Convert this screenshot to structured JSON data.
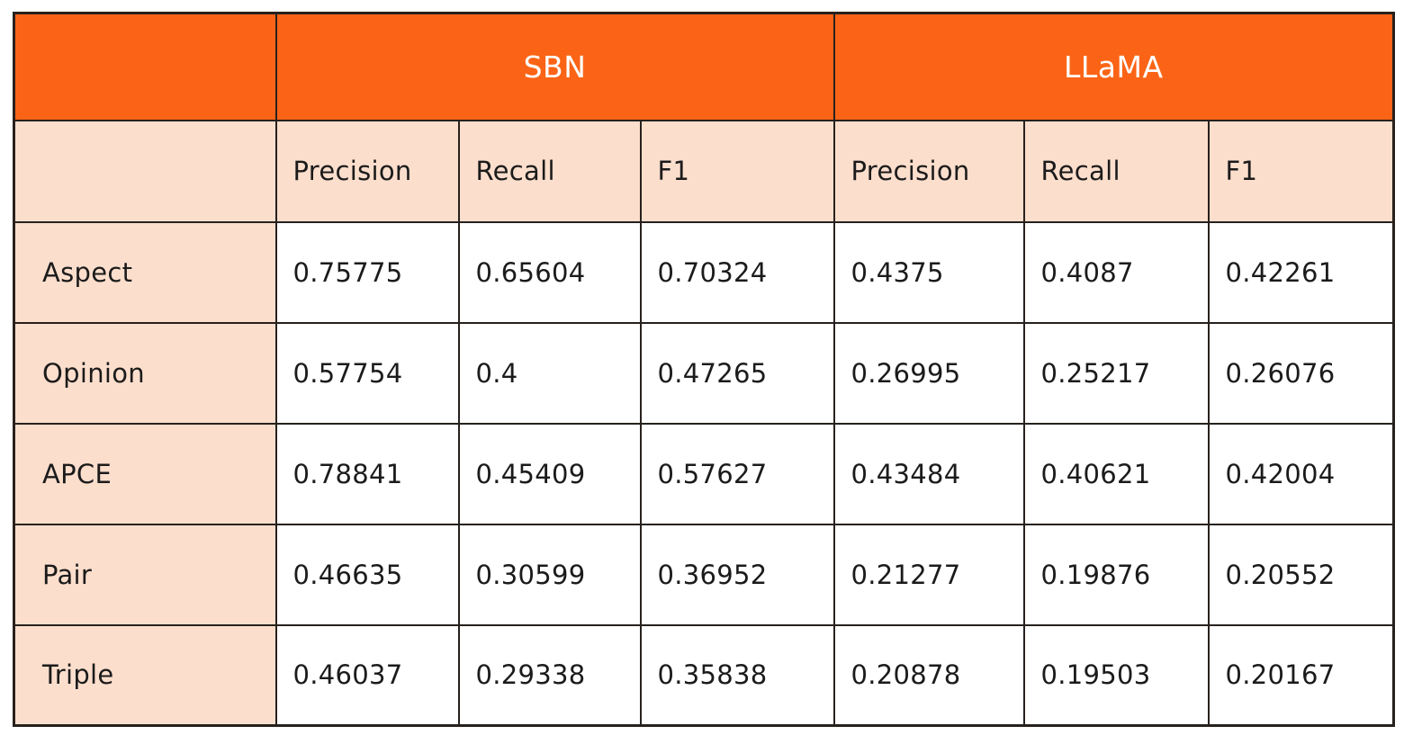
{
  "colors": {
    "group_header_bg": "#FB6416",
    "group_header_text": "#FFFFFF",
    "label_bg": "#FCDECC",
    "cell_bg": "#FFFFFF",
    "border": "#27211D",
    "text": "#1B1B1B"
  },
  "table": {
    "group_headers": [
      {
        "label": "SBN",
        "span": 3
      },
      {
        "label": "LLaMA",
        "span": 3
      }
    ],
    "metric_headers": [
      "Precision",
      "Recall",
      "F1"
    ],
    "rows": [
      {
        "label": "Aspect",
        "values": [
          "0.75775",
          "0.65604",
          "0.70324",
          "0.4375",
          "0.4087",
          "0.42261"
        ]
      },
      {
        "label": "Opinion",
        "values": [
          "0.57754",
          "0.4",
          "0.47265",
          "0.26995",
          "0.25217",
          "0.26076"
        ]
      },
      {
        "label": "APCE",
        "values": [
          "0.78841",
          "0.45409",
          "0.57627",
          "0.43484",
          "0.40621",
          "0.42004"
        ]
      },
      {
        "label": "Pair",
        "values": [
          "0.46635",
          "0.30599",
          "0.36952",
          "0.21277",
          "0.19876",
          "0.20552"
        ]
      },
      {
        "label": "Triple",
        "values": [
          "0.46037",
          "0.29338",
          "0.35838",
          "0.20878",
          "0.19503",
          "0.20167"
        ]
      }
    ]
  },
  "chart_data": {
    "type": "table",
    "column_groups": [
      "SBN",
      "LLaMA"
    ],
    "columns": [
      "SBN Precision",
      "SBN Recall",
      "SBN F1",
      "LLaMA Precision",
      "LLaMA Recall",
      "LLaMA F1"
    ],
    "row_labels": [
      "Aspect",
      "Opinion",
      "APCE",
      "Pair",
      "Triple"
    ],
    "series": [
      {
        "name": "SBN",
        "metrics": {
          "Precision": [
            0.75775,
            0.57754,
            0.78841,
            0.46635,
            0.46037
          ],
          "Recall": [
            0.65604,
            0.4,
            0.45409,
            0.30599,
            0.29338
          ],
          "F1": [
            0.70324,
            0.47265,
            0.57627,
            0.36952,
            0.35838
          ]
        }
      },
      {
        "name": "LLaMA",
        "metrics": {
          "Precision": [
            0.4375,
            0.26995,
            0.43484,
            0.21277,
            0.20878
          ],
          "Recall": [
            0.4087,
            0.25217,
            0.40621,
            0.19876,
            0.19503
          ],
          "F1": [
            0.42261,
            0.26076,
            0.42004,
            0.20552,
            0.20167
          ]
        }
      }
    ]
  }
}
